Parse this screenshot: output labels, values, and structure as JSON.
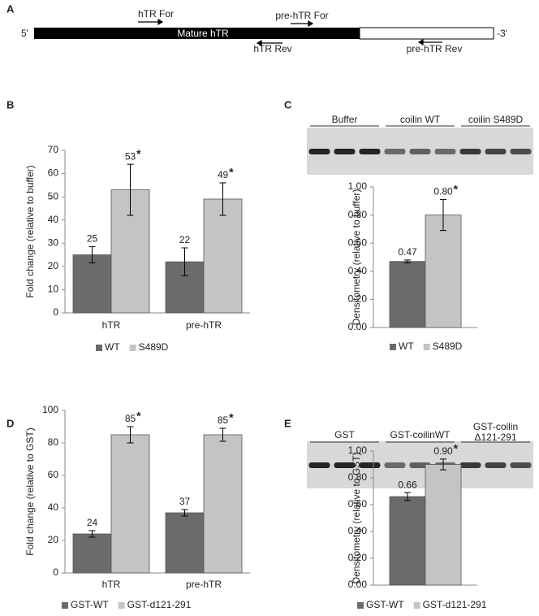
{
  "panels": [
    "A",
    "B",
    "C",
    "D",
    "E"
  ],
  "diagram": {
    "five_prime": "5'",
    "three_prime": "-3'",
    "mature": "Mature  hTR",
    "primers": [
      "hTR For",
      "pre-hTR For",
      "hTR Rev",
      "pre-hTR Rev"
    ]
  },
  "gels": [
    {
      "lanes": [
        "Buffer",
        "coilin WT",
        "coilin S489D"
      ]
    },
    {
      "lanes": [
        "GST",
        "GST-coilinWT",
        [
          "GST-coilin",
          "Δ121-291"
        ]
      ]
    }
  ],
  "chart_data": [
    {
      "type": "bar",
      "y_label": "Fold change (relative to buffer)",
      "categories": [
        "hTR",
        "pre-hTR"
      ],
      "ylim": [
        0,
        70
      ],
      "yticks": [
        0,
        10,
        20,
        30,
        40,
        50,
        60,
        70
      ],
      "series": [
        {
          "name": "WT",
          "color": "#6b6b6b",
          "values": [
            25,
            22
          ],
          "errors": [
            3.5,
            6
          ]
        },
        {
          "name": "S489D",
          "color": "#c4c4c4",
          "values": [
            53,
            49
          ],
          "errors": [
            11,
            7
          ],
          "significance": [
            "*",
            "*"
          ]
        }
      ]
    },
    {
      "type": "bar",
      "y_label": "Densitometry (relative to buffer)",
      "categories": [
        null
      ],
      "ylim": [
        0,
        1
      ],
      "yticks": [
        {
          "value": 0,
          "label": "0.00"
        },
        {
          "value": 0.2,
          "label": "0.20"
        },
        {
          "value": 0.4,
          "label": "0.40"
        },
        {
          "value": 0.6,
          "label": "0.60"
        },
        {
          "value": 0.8,
          "label": "0.80"
        },
        {
          "value": 1,
          "label": "1.00"
        }
      ],
      "series": [
        {
          "name": "WT",
          "color": "#6b6b6b",
          "values": [
            0.47
          ],
          "value_labels": [
            "0.47"
          ],
          "errors": [
            0.01
          ]
        },
        {
          "name": "S489D",
          "color": "#c4c4c4",
          "values": [
            0.8
          ],
          "value_labels": [
            "0.80"
          ],
          "errors": [
            0.11
          ],
          "significance": [
            "*"
          ]
        }
      ]
    },
    {
      "type": "bar",
      "y_label": "Fold change (relative to GST)",
      "categories": [
        "hTR",
        "pre-hTR"
      ],
      "ylim": [
        0,
        100
      ],
      "yticks": [
        0,
        20,
        40,
        60,
        80,
        100
      ],
      "series": [
        {
          "name": "GST-WT",
          "color": "#6b6b6b",
          "values": [
            24,
            37
          ],
          "errors": [
            2,
            2
          ]
        },
        {
          "name": "GST-d121-291",
          "color": "#c4c4c4",
          "values": [
            85,
            85
          ],
          "errors": [
            5,
            4
          ],
          "significance": [
            "*",
            "*"
          ]
        }
      ]
    },
    {
      "type": "bar",
      "y_label": "Densitometry (relative to GST)",
      "categories": [
        null
      ],
      "ylim": [
        0,
        1
      ],
      "yticks": [
        {
          "value": 0,
          "label": "0.00"
        },
        {
          "value": 0.2,
          "label": "0.20"
        },
        {
          "value": 0.4,
          "label": "0.40"
        },
        {
          "value": 0.6,
          "label": "0.60"
        },
        {
          "value": 0.8,
          "label": "0.80"
        },
        {
          "value": 1,
          "label": "1.00"
        }
      ],
      "series": [
        {
          "name": "GST-WT",
          "color": "#6b6b6b",
          "values": [
            0.66
          ],
          "value_labels": [
            "0.66"
          ],
          "errors": [
            0.03
          ]
        },
        {
          "name": "GST-d121-291",
          "color": "#c4c4c4",
          "values": [
            0.9
          ],
          "value_labels": [
            "0.90"
          ],
          "errors": [
            0.04
          ],
          "significance": [
            "*"
          ]
        }
      ]
    }
  ]
}
